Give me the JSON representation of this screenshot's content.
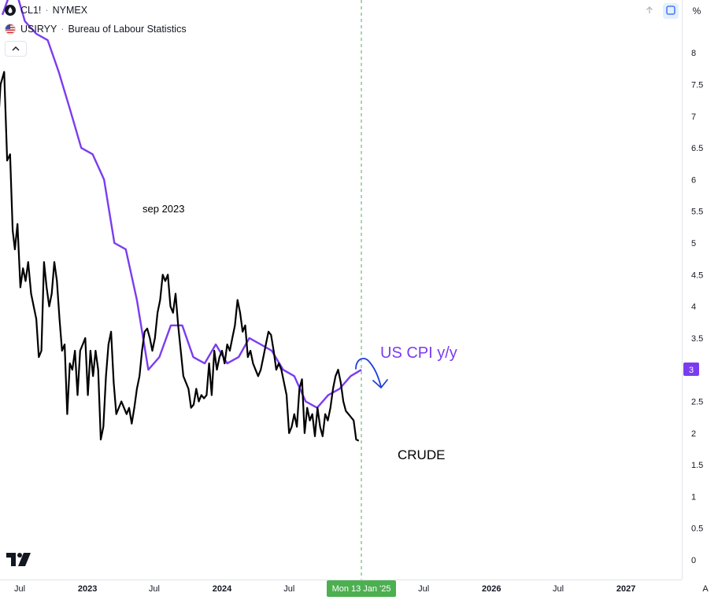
{
  "legend": {
    "crude": {
      "symbol": "CL1!",
      "exchange": "NYMEX"
    },
    "cpi": {
      "symbol": "USIRYY",
      "source": "Bureau of Labour Statistics"
    },
    "separator": "·"
  },
  "toolbar": {
    "scale_mode_label": "%",
    "auto_label": "A",
    "arrow_up_icon": "arrow-up-icon",
    "sync_icon": "sync-icon"
  },
  "crosshair": {
    "date_label": "Mon 13 Jan '25"
  },
  "annotations": {
    "sep_label": "sep 2023",
    "cpi_label": "US CPI y/y",
    "crude_label": "CRUDE"
  },
  "colors": {
    "cpi_line": "#7b3cf0",
    "crude_line": "#000000",
    "arrow": "#1f3fd8",
    "crosshair": "#4caf50",
    "date_badge": "#4caf50",
    "price_badge": "#7b3cf0",
    "grid_text": "#131722"
  },
  "chart_data": {
    "type": "line",
    "title": "",
    "x_ticks": [
      "Jul",
      "2023",
      "Jul",
      "2024",
      "Jul",
      "Jan '25",
      "Jul",
      "2026",
      "Jul",
      "2027"
    ],
    "y_axis": {
      "ticks": [
        "0",
        "0.5",
        "1",
        "1.5",
        "2",
        "2.5",
        "3",
        "3.5",
        "4",
        "4.5",
        "5",
        "5.5",
        "6",
        "6.5",
        "7",
        "7.5",
        "8"
      ],
      "ylim": [
        0,
        8.3
      ]
    },
    "last_value_label": "3",
    "series": [
      {
        "name": "USIRYY",
        "points": [
          [
            "2022-05-15",
            8.6
          ],
          [
            "2022-06-15",
            9.1
          ],
          [
            "2022-07-15",
            8.5
          ],
          [
            "2022-08-15",
            8.3
          ],
          [
            "2022-09-15",
            8.2
          ],
          [
            "2022-10-15",
            7.7
          ],
          [
            "2022-11-15",
            7.1
          ],
          [
            "2022-12-15",
            6.5
          ],
          [
            "2023-01-15",
            6.4
          ],
          [
            "2023-02-15",
            6.0
          ],
          [
            "2023-03-15",
            5.0
          ],
          [
            "2023-04-15",
            4.9
          ],
          [
            "2023-05-15",
            4.1
          ],
          [
            "2023-06-15",
            3.0
          ],
          [
            "2023-07-15",
            3.2
          ],
          [
            "2023-08-15",
            3.7
          ],
          [
            "2023-09-15",
            3.7
          ],
          [
            "2023-10-15",
            3.2
          ],
          [
            "2023-11-15",
            3.1
          ],
          [
            "2023-12-15",
            3.4
          ],
          [
            "2024-01-15",
            3.1
          ],
          [
            "2024-02-15",
            3.2
          ],
          [
            "2024-03-15",
            3.5
          ],
          [
            "2024-04-15",
            3.4
          ],
          [
            "2024-05-15",
            3.3
          ],
          [
            "2024-06-15",
            3.0
          ],
          [
            "2024-07-15",
            2.9
          ],
          [
            "2024-08-15",
            2.5
          ],
          [
            "2024-09-15",
            2.4
          ],
          [
            "2024-10-15",
            2.6
          ],
          [
            "2024-11-15",
            2.7
          ],
          [
            "2024-12-15",
            2.9
          ],
          [
            "2025-01-13",
            3.0
          ]
        ]
      },
      {
        "name": "CL1!",
        "points": [
          [
            "2022-05-01",
            6.6
          ],
          [
            "2022-05-10",
            7.5
          ],
          [
            "2022-05-20",
            7.7
          ],
          [
            "2022-05-28",
            6.3
          ],
          [
            "2022-06-05",
            6.4
          ],
          [
            "2022-06-12",
            5.2
          ],
          [
            "2022-06-18",
            4.9
          ],
          [
            "2022-06-25",
            5.3
          ],
          [
            "2022-07-03",
            4.3
          ],
          [
            "2022-07-10",
            4.6
          ],
          [
            "2022-07-17",
            4.4
          ],
          [
            "2022-07-24",
            4.7
          ],
          [
            "2022-08-01",
            4.2
          ],
          [
            "2022-08-08",
            4.0
          ],
          [
            "2022-08-15",
            3.8
          ],
          [
            "2022-08-22",
            3.2
          ],
          [
            "2022-08-29",
            3.3
          ],
          [
            "2022-09-05",
            4.7
          ],
          [
            "2022-09-12",
            4.3
          ],
          [
            "2022-09-19",
            4.0
          ],
          [
            "2022-09-26",
            4.2
          ],
          [
            "2022-10-03",
            4.7
          ],
          [
            "2022-10-10",
            4.4
          ],
          [
            "2022-10-17",
            3.8
          ],
          [
            "2022-10-24",
            3.3
          ],
          [
            "2022-10-31",
            3.4
          ],
          [
            "2022-11-07",
            2.3
          ],
          [
            "2022-11-14",
            3.1
          ],
          [
            "2022-11-21",
            3.0
          ],
          [
            "2022-11-28",
            3.3
          ],
          [
            "2022-12-05",
            2.6
          ],
          [
            "2022-12-12",
            3.3
          ],
          [
            "2022-12-19",
            3.4
          ],
          [
            "2022-12-26",
            3.5
          ],
          [
            "2023-01-02",
            2.6
          ],
          [
            "2023-01-09",
            3.3
          ],
          [
            "2023-01-16",
            2.9
          ],
          [
            "2023-01-23",
            3.3
          ],
          [
            "2023-01-30",
            3.0
          ],
          [
            "2023-02-06",
            1.9
          ],
          [
            "2023-02-13",
            2.1
          ],
          [
            "2023-02-20",
            2.9
          ],
          [
            "2023-02-27",
            3.4
          ],
          [
            "2023-03-06",
            3.6
          ],
          [
            "2023-03-13",
            2.8
          ],
          [
            "2023-03-20",
            2.3
          ],
          [
            "2023-03-27",
            2.4
          ],
          [
            "2023-04-03",
            2.5
          ],
          [
            "2023-04-10",
            2.4
          ],
          [
            "2023-04-17",
            2.3
          ],
          [
            "2023-04-24",
            2.4
          ],
          [
            "2023-05-01",
            2.15
          ],
          [
            "2023-05-08",
            2.4
          ],
          [
            "2023-05-15",
            2.7
          ],
          [
            "2023-05-22",
            2.9
          ],
          [
            "2023-05-29",
            3.3
          ],
          [
            "2023-06-05",
            3.6
          ],
          [
            "2023-06-12",
            3.65
          ],
          [
            "2023-06-19",
            3.5
          ],
          [
            "2023-06-26",
            3.3
          ],
          [
            "2023-07-03",
            3.5
          ],
          [
            "2023-07-10",
            3.9
          ],
          [
            "2023-07-17",
            4.1
          ],
          [
            "2023-07-24",
            4.5
          ],
          [
            "2023-07-31",
            4.4
          ],
          [
            "2023-08-07",
            4.5
          ],
          [
            "2023-08-14",
            4.0
          ],
          [
            "2023-08-21",
            3.9
          ],
          [
            "2023-08-28",
            4.2
          ],
          [
            "2023-09-04",
            3.7
          ],
          [
            "2023-09-11",
            3.3
          ],
          [
            "2023-09-18",
            2.9
          ],
          [
            "2023-09-25",
            2.8
          ],
          [
            "2023-10-02",
            2.7
          ],
          [
            "2023-10-09",
            2.4
          ],
          [
            "2023-10-16",
            2.45
          ],
          [
            "2023-10-23",
            2.7
          ],
          [
            "2023-10-30",
            2.5
          ],
          [
            "2023-11-06",
            2.6
          ],
          [
            "2023-11-13",
            2.55
          ],
          [
            "2023-11-20",
            2.6
          ],
          [
            "2023-11-27",
            3.1
          ],
          [
            "2023-12-04",
            2.6
          ],
          [
            "2023-12-11",
            3.3
          ],
          [
            "2023-12-18",
            3.0
          ],
          [
            "2023-12-25",
            3.2
          ],
          [
            "2024-01-01",
            3.3
          ],
          [
            "2024-01-08",
            3.1
          ],
          [
            "2024-01-15",
            3.4
          ],
          [
            "2024-01-22",
            3.3
          ],
          [
            "2024-01-29",
            3.5
          ],
          [
            "2024-02-05",
            3.7
          ],
          [
            "2024-02-12",
            4.1
          ],
          [
            "2024-02-19",
            3.9
          ],
          [
            "2024-02-26",
            3.6
          ],
          [
            "2024-03-04",
            3.7
          ],
          [
            "2024-03-11",
            3.2
          ],
          [
            "2024-03-18",
            3.3
          ],
          [
            "2024-03-25",
            3.1
          ],
          [
            "2024-04-01",
            3.0
          ],
          [
            "2024-04-08",
            2.9
          ],
          [
            "2024-04-15",
            3.0
          ],
          [
            "2024-04-22",
            3.2
          ],
          [
            "2024-04-29",
            3.4
          ],
          [
            "2024-05-06",
            3.6
          ],
          [
            "2024-05-13",
            3.55
          ],
          [
            "2024-05-20",
            3.3
          ],
          [
            "2024-05-27",
            3.0
          ],
          [
            "2024-06-03",
            3.1
          ],
          [
            "2024-06-10",
            3.0
          ],
          [
            "2024-06-17",
            2.8
          ],
          [
            "2024-06-24",
            2.6
          ],
          [
            "2024-07-01",
            2.0
          ],
          [
            "2024-07-08",
            2.1
          ],
          [
            "2024-07-15",
            2.3
          ],
          [
            "2024-07-22",
            2.1
          ],
          [
            "2024-07-29",
            2.7
          ],
          [
            "2024-08-05",
            2.85
          ],
          [
            "2024-08-12",
            2.0
          ],
          [
            "2024-08-19",
            2.4
          ],
          [
            "2024-08-26",
            2.2
          ],
          [
            "2024-09-02",
            2.3
          ],
          [
            "2024-09-09",
            1.95
          ],
          [
            "2024-09-16",
            2.4
          ],
          [
            "2024-09-23",
            2.1
          ],
          [
            "2024-09-30",
            1.95
          ],
          [
            "2024-10-07",
            2.3
          ],
          [
            "2024-10-14",
            2.2
          ],
          [
            "2024-10-21",
            2.4
          ],
          [
            "2024-10-28",
            2.7
          ],
          [
            "2024-11-04",
            2.9
          ],
          [
            "2024-11-11",
            3.0
          ],
          [
            "2024-11-18",
            2.8
          ],
          [
            "2024-11-25",
            2.5
          ],
          [
            "2024-12-02",
            2.35
          ],
          [
            "2024-12-09",
            2.3
          ],
          [
            "2024-12-16",
            2.25
          ],
          [
            "2024-12-23",
            2.2
          ],
          [
            "2024-12-30",
            1.9
          ],
          [
            "2025-01-06",
            1.88
          ]
        ]
      }
    ]
  }
}
